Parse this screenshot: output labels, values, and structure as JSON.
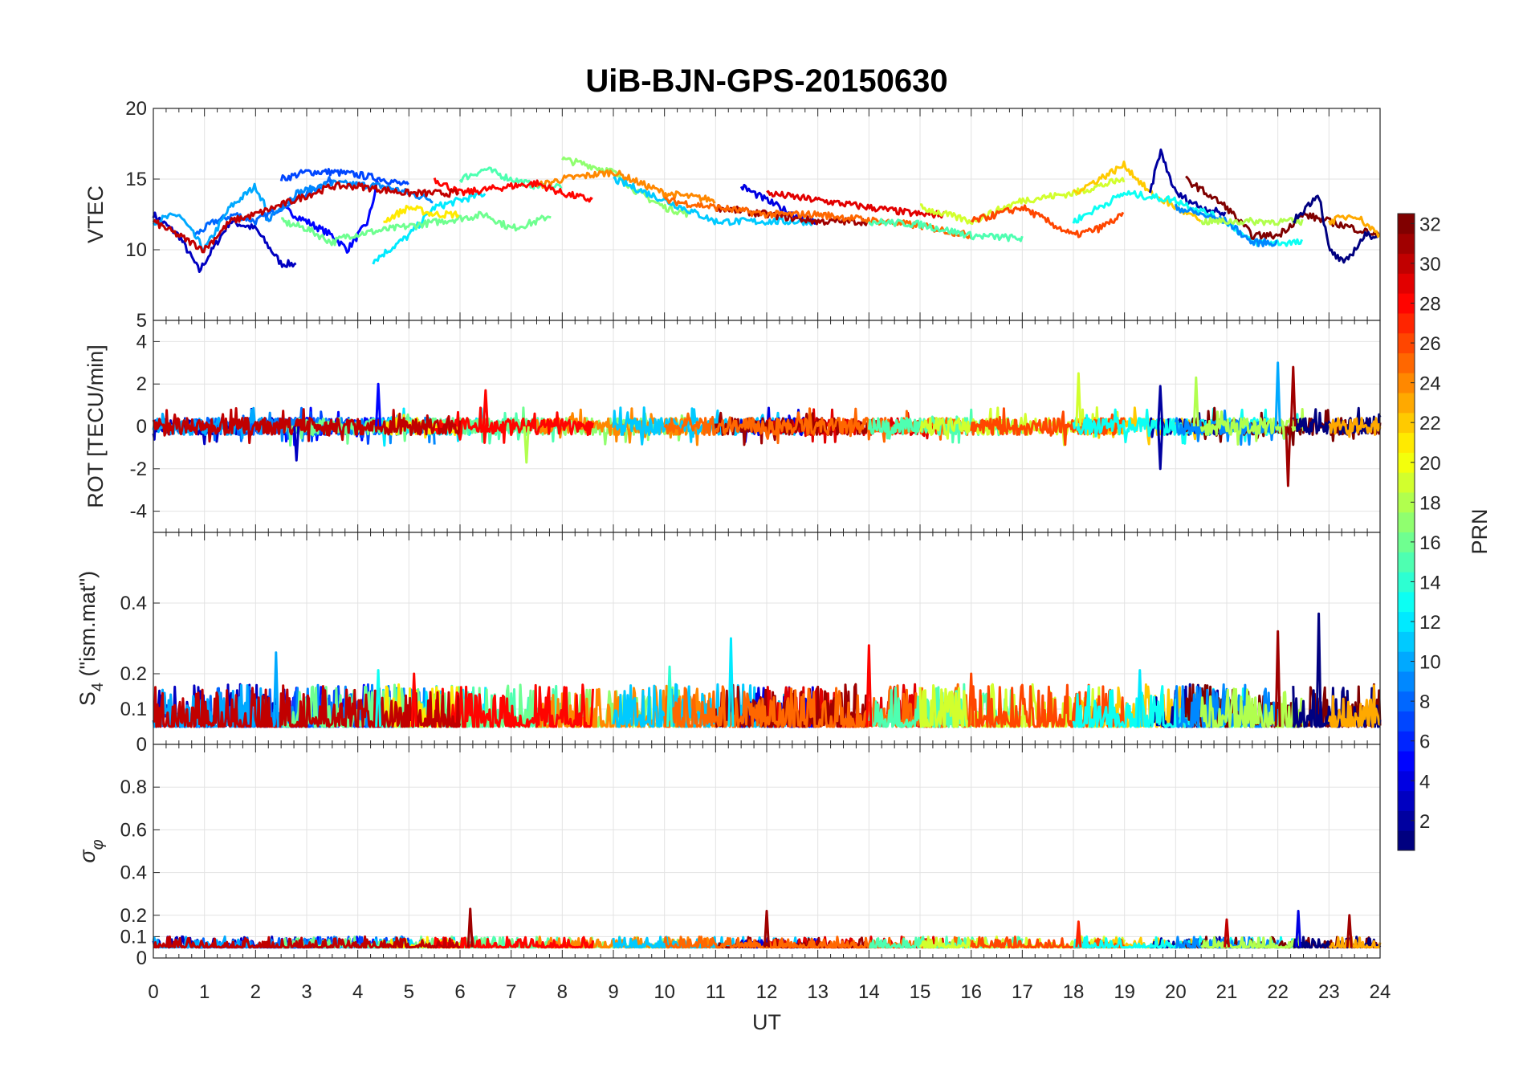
{
  "chart_data": {
    "type": "line",
    "title": "UiB-BJN-GPS-20150630",
    "xlabel": "UT",
    "xlim": [
      0,
      24
    ],
    "xticks": [
      0,
      1,
      2,
      3,
      4,
      5,
      6,
      7,
      8,
      9,
      10,
      11,
      12,
      13,
      14,
      15,
      16,
      17,
      18,
      19,
      20,
      21,
      22,
      23,
      24
    ],
    "grid": true,
    "panels": [
      {
        "key": "vtec",
        "ylabel": "VTEC",
        "ylim": [
          5,
          20
        ],
        "yticks": [
          5,
          10,
          15,
          20
        ]
      },
      {
        "key": "rot",
        "ylabel": "ROT [TECU/min]",
        "ylim": [
          -5,
          5
        ],
        "yticks": [
          -4,
          -2,
          0,
          2,
          4
        ]
      },
      {
        "key": "s4",
        "ylabel": "S",
        "ylabel_sub": "4",
        "ylabel_rest": " (\"ism.mat\")",
        "ylim": [
          0,
          0.6
        ],
        "yticks": [
          0,
          0.1,
          0.2,
          0.4
        ]
      },
      {
        "key": "sigma",
        "ylabel": "σ",
        "ylabel_sub": "φ",
        "ylim": [
          0,
          1
        ],
        "yticks": [
          0,
          0.1,
          0.2,
          0.4,
          0.6,
          0.8
        ]
      }
    ],
    "colorbar": {
      "label": "PRN",
      "range": [
        1,
        32
      ],
      "ticks": [
        2,
        4,
        6,
        8,
        10,
        12,
        14,
        16,
        18,
        20,
        22,
        24,
        26,
        28,
        30,
        32
      ],
      "colormap": "jet",
      "location": "right"
    },
    "series": [
      {
        "prn": 3,
        "vtec": [
          [
            0,
            12.5
          ],
          [
            0.5,
            11
          ],
          [
            0.9,
            8.5
          ],
          [
            1.5,
            12
          ],
          [
            2,
            11.5
          ],
          [
            2.3,
            10
          ],
          [
            2.5,
            9
          ],
          [
            2.8,
            9
          ]
        ]
      },
      {
        "prn": 5,
        "vtec": [
          [
            2.5,
            13
          ],
          [
            3,
            12
          ],
          [
            3.5,
            11
          ],
          [
            3.8,
            10
          ],
          [
            4.2,
            12
          ],
          [
            4.4,
            15
          ]
        ]
      },
      {
        "prn": 8,
        "vtec": [
          [
            0.8,
            11
          ],
          [
            1.2,
            12
          ],
          [
            1.6,
            12.5
          ],
          [
            2,
            12
          ],
          [
            2.5,
            13
          ],
          [
            3,
            14
          ],
          [
            3.5,
            15
          ]
        ]
      },
      {
        "prn": 10,
        "vtec": [
          [
            0,
            12
          ],
          [
            0.5,
            12.5
          ],
          [
            1,
            10
          ],
          [
            1.5,
            13
          ],
          [
            2,
            14.5
          ],
          [
            2.2,
            13
          ]
        ]
      },
      {
        "prn": 7,
        "vtec": [
          [
            2.5,
            15
          ],
          [
            3,
            15.5
          ],
          [
            3.5,
            15.5
          ],
          [
            4,
            15.3
          ],
          [
            4.5,
            15
          ],
          [
            5,
            14.5
          ]
        ]
      },
      {
        "prn": 9,
        "vtec": [
          [
            2.2,
            12
          ],
          [
            2.8,
            14
          ],
          [
            3.5,
            14.7
          ],
          [
            4.5,
            14.5
          ],
          [
            5.5,
            13.5
          ]
        ]
      },
      {
        "prn": 12,
        "vtec": [
          [
            4.3,
            9.2
          ],
          [
            5,
            11
          ],
          [
            5.5,
            13
          ],
          [
            6,
            13.5
          ],
          [
            6.5,
            14
          ]
        ]
      },
      {
        "prn": 15,
        "vtec": [
          [
            6,
            15
          ],
          [
            6.5,
            15.7
          ],
          [
            7,
            15
          ],
          [
            7.5,
            14.5
          ],
          [
            8,
            14.5
          ]
        ]
      },
      {
        "prn": 16,
        "vtec": [
          [
            2.5,
            12
          ],
          [
            3,
            11.5
          ],
          [
            3.5,
            10.5
          ],
          [
            3.8,
            11
          ],
          [
            6.5,
            12.5
          ],
          [
            7,
            11.5
          ],
          [
            7.5,
            12
          ],
          [
            7.8,
            12.5
          ]
        ]
      },
      {
        "prn": 17,
        "vtec": [
          [
            8,
            16.4
          ],
          [
            8.5,
            16
          ],
          [
            9,
            15.5
          ],
          [
            9.5,
            14
          ],
          [
            10,
            13
          ],
          [
            10.5,
            12.5
          ]
        ]
      },
      {
        "prn": 21,
        "vtec": [
          [
            4.5,
            12
          ],
          [
            5,
            13
          ],
          [
            5.5,
            12.5
          ],
          [
            6,
            12.5
          ]
        ]
      },
      {
        "prn": 24,
        "vtec": [
          [
            7.5,
            14.5
          ],
          [
            8,
            15
          ],
          [
            9,
            15.5
          ],
          [
            10,
            14
          ],
          [
            11,
            13.5
          ]
        ]
      },
      {
        "prn": 28,
        "vtec": [
          [
            5.5,
            15
          ],
          [
            6,
            14
          ],
          [
            7,
            14.5
          ],
          [
            7.5,
            14.7
          ],
          [
            8,
            14
          ],
          [
            8.6,
            13.5
          ]
        ]
      },
      {
        "prn": 30,
        "vtec": [
          [
            0,
            12
          ],
          [
            0.5,
            11
          ],
          [
            1,
            10
          ],
          [
            1.5,
            12
          ],
          [
            2,
            12.5
          ],
          [
            3.5,
            14.5
          ],
          [
            4,
            14.5
          ],
          [
            5,
            14
          ],
          [
            6,
            14
          ]
        ]
      },
      {
        "prn": 11,
        "vtec": [
          [
            9,
            15
          ],
          [
            10,
            13.5
          ],
          [
            11,
            12
          ],
          [
            12,
            12
          ],
          [
            13,
            12
          ]
        ]
      },
      {
        "prn": 4,
        "vtec": [
          [
            11.5,
            14.5
          ],
          [
            12,
            13.5
          ],
          [
            12.5,
            12.5
          ],
          [
            13,
            12
          ]
        ]
      },
      {
        "prn": 29,
        "vtec": [
          [
            12,
            14
          ],
          [
            13,
            13.5
          ],
          [
            14,
            13
          ],
          [
            15,
            12.5
          ],
          [
            15.5,
            12.5
          ]
        ]
      },
      {
        "prn": 31,
        "vtec": [
          [
            11,
            13
          ],
          [
            12,
            12.5
          ],
          [
            13,
            12
          ],
          [
            14,
            12
          ]
        ]
      },
      {
        "prn": 25,
        "vtec": [
          [
            10,
            13.5
          ],
          [
            12,
            12.5
          ],
          [
            13,
            12.5
          ],
          [
            15,
            11.7
          ],
          [
            16,
            11
          ]
        ]
      },
      {
        "prn": 15,
        "vtec": [
          [
            14,
            12
          ],
          [
            15,
            11.8
          ],
          [
            16,
            11
          ],
          [
            17,
            10.8
          ]
        ]
      },
      {
        "prn": 19,
        "vtec": [
          [
            15,
            13
          ],
          [
            16,
            12
          ],
          [
            17,
            13.5
          ],
          [
            18,
            14
          ],
          [
            19,
            15
          ]
        ]
      },
      {
        "prn": 22,
        "vtec": [
          [
            18,
            14
          ],
          [
            18.5,
            15
          ],
          [
            19,
            16
          ],
          [
            19.5,
            14
          ],
          [
            20,
            13
          ],
          [
            20.5,
            12
          ]
        ]
      },
      {
        "prn": 26,
        "vtec": [
          [
            16,
            12
          ],
          [
            17,
            13
          ],
          [
            17.5,
            12
          ],
          [
            18,
            11
          ],
          [
            18.5,
            11.5
          ],
          [
            19,
            12.5
          ]
        ]
      },
      {
        "prn": 2,
        "vtec": [
          [
            19.5,
            14
          ],
          [
            19.7,
            17
          ],
          [
            20,
            14
          ],
          [
            20.5,
            13
          ],
          [
            21,
            12.5
          ]
        ]
      },
      {
        "prn": 13,
        "vtec": [
          [
            18,
            12
          ],
          [
            19,
            14
          ],
          [
            20,
            13.5
          ],
          [
            21,
            12
          ],
          [
            21.5,
            10.5
          ],
          [
            22.5,
            10.5
          ]
        ]
      },
      {
        "prn": 32,
        "vtec": [
          [
            20.2,
            15
          ],
          [
            21,
            13
          ],
          [
            21.5,
            11
          ],
          [
            22,
            11
          ],
          [
            22.5,
            12.5
          ],
          [
            23,
            12
          ],
          [
            24,
            11
          ]
        ]
      },
      {
        "prn": 9,
        "vtec": [
          [
            20,
            13
          ],
          [
            21,
            12
          ],
          [
            21.5,
            10.5
          ],
          [
            22,
            10.5
          ]
        ]
      },
      {
        "prn": 18,
        "vtec": [
          [
            20.5,
            12
          ],
          [
            21.5,
            12
          ],
          [
            22.5,
            12
          ]
        ]
      },
      {
        "prn": 1,
        "vtec": [
          [
            22.3,
            12
          ],
          [
            22.8,
            14
          ],
          [
            23,
            10
          ],
          [
            23.3,
            9
          ],
          [
            23.7,
            11
          ],
          [
            24,
            11
          ]
        ]
      },
      {
        "prn": 23,
        "vtec": [
          [
            23,
            12
          ],
          [
            23.5,
            12.5
          ],
          [
            24,
            11
          ]
        ]
      }
    ],
    "rot_spikes": [
      [
        4.4,
        2.0,
        5
      ],
      [
        2.8,
        -1.6,
        3
      ],
      [
        6.5,
        1.7,
        28
      ],
      [
        7.3,
        -1.7,
        18
      ],
      [
        18.1,
        2.5,
        19
      ],
      [
        19.7,
        1.9,
        2
      ],
      [
        19.7,
        -2.0,
        2
      ],
      [
        20.4,
        2.3,
        18
      ],
      [
        22.0,
        3.0,
        10
      ],
      [
        22.3,
        2.8,
        31
      ],
      [
        22.2,
        -2.8,
        31
      ]
    ],
    "s4_spikes": [
      [
        2.4,
        0.26,
        10
      ],
      [
        4.4,
        0.21,
        13
      ],
      [
        5.1,
        0.2,
        28
      ],
      [
        11.3,
        0.3,
        12
      ],
      [
        14,
        0.28,
        28
      ],
      [
        16,
        0.2,
        26
      ],
      [
        19.3,
        0.21,
        12
      ],
      [
        22,
        0.32,
        31
      ],
      [
        22.8,
        0.37,
        1
      ],
      [
        10.1,
        0.22,
        14
      ]
    ],
    "sigma_spikes": [
      [
        6.2,
        0.23,
        31
      ],
      [
        12,
        0.22,
        31
      ],
      [
        22.4,
        0.22,
        4
      ],
      [
        23.4,
        0.2,
        31
      ],
      [
        18.1,
        0.17,
        27
      ],
      [
        21,
        0.18,
        30
      ]
    ]
  }
}
